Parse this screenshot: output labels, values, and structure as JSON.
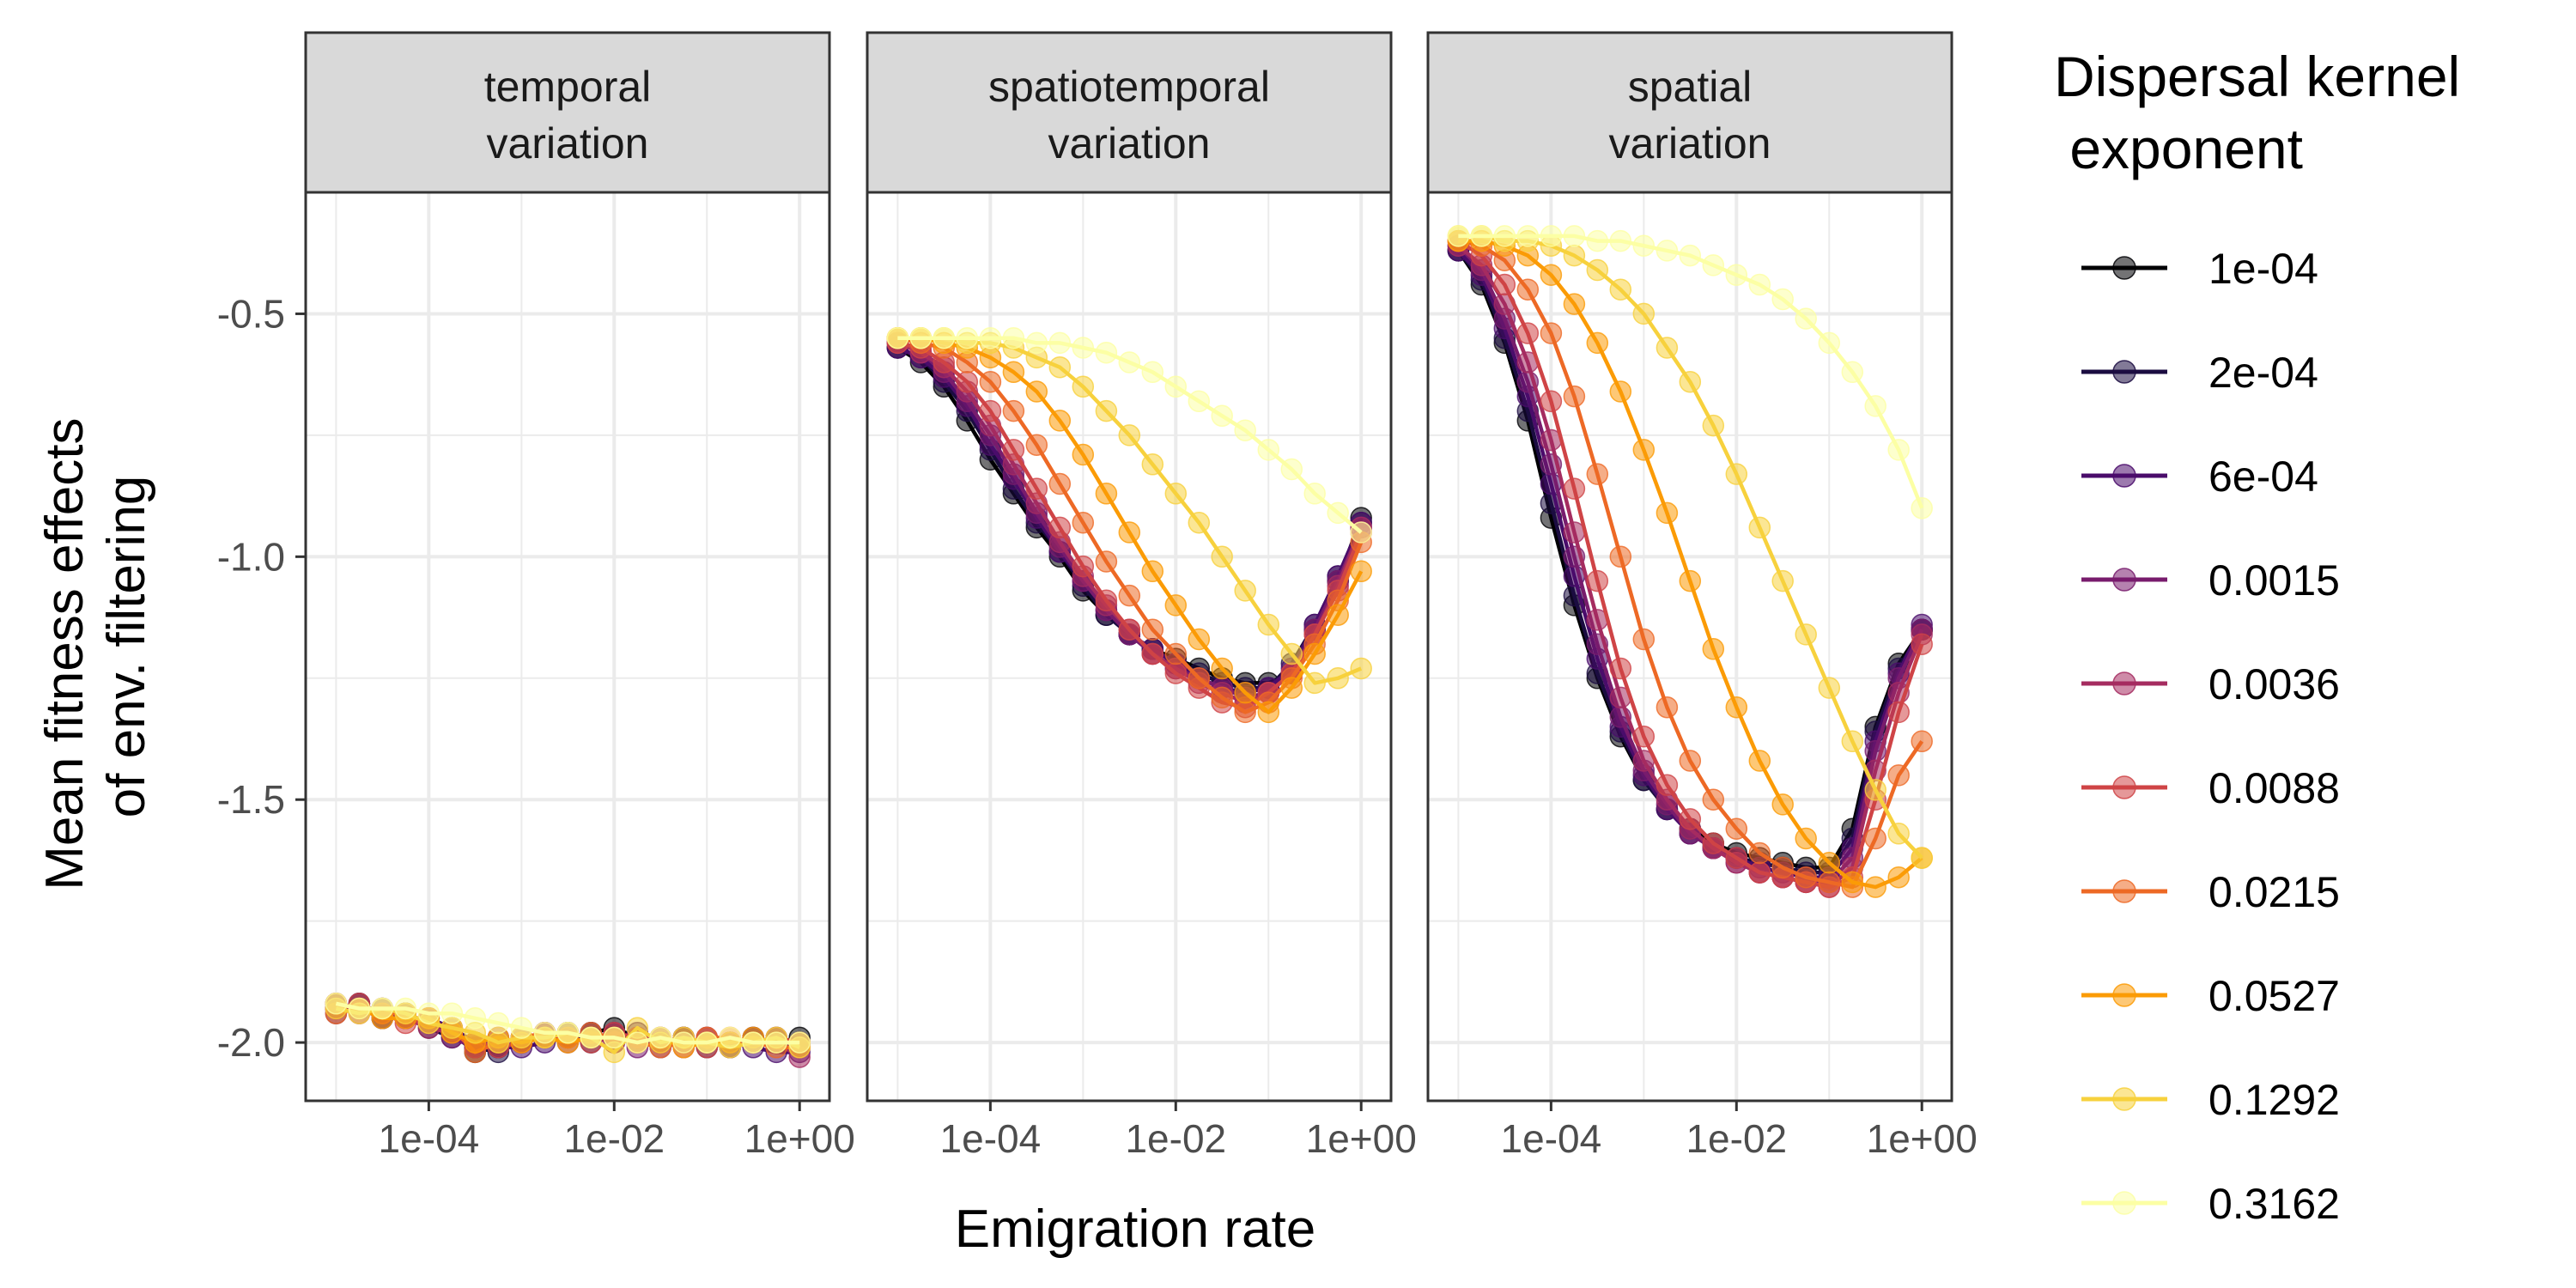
{
  "chart_data": {
    "type": "line",
    "xlabel": "Emigration rate",
    "ylabel_lines": [
      "Mean fitness effects",
      "of env. filtering"
    ],
    "x_scale": "log10",
    "x_ticks": [
      0.0001,
      0.01,
      1
    ],
    "x_tick_labels": [
      "1e-04",
      "1e-02",
      "1e+00"
    ],
    "y_ticks": [
      -0.5,
      -1.0,
      -1.5,
      -2.0
    ],
    "y_tick_labels": [
      "-0.5",
      "-1.0",
      "-1.5",
      "-2.0"
    ],
    "ylim": [
      -2.12,
      -0.25
    ],
    "xlim": [
      4.7e-06,
      2.1
    ],
    "grid": true,
    "legend": {
      "title_lines": [
        "Dispersal kernel",
        " exponent"
      ],
      "position": "right",
      "entries": [
        "1e-04",
        "2e-04",
        "6e-04",
        "0.0015",
        "0.0036",
        "0.0088",
        "0.0215",
        "0.0527",
        "0.1292",
        "0.3162"
      ],
      "colors": [
        "#000004",
        "#1b0c41",
        "#4a0c6b",
        "#781c6d",
        "#a52c60",
        "#cf4446",
        "#ed6925",
        "#fb9b06",
        "#f7d13d",
        "#fcffa4"
      ]
    },
    "x_points": [
      1e-05,
      1.78e-05,
      3.16e-05,
      5.62e-05,
      0.0001,
      0.000178,
      0.000316,
      0.000562,
      0.001,
      0.00178,
      0.00316,
      0.00562,
      0.01,
      0.0178,
      0.0316,
      0.0562,
      0.1,
      0.178,
      0.316,
      0.562,
      1
    ],
    "panels": [
      {
        "title_lines": [
          "temporal",
          "variation"
        ],
        "series": [
          {
            "values": [
              -1.93,
              -1.92,
              -1.95,
              -1.94,
              -1.96,
              -1.98,
              -2.02,
              -2.01,
              -2.0,
              -1.98,
              -1.99,
              -1.98,
              -1.97,
              -1.99,
              -2.0,
              -1.99,
              -2.0,
              -2.01,
              -1.99,
              -2.0,
              -1.99
            ]
          },
          {
            "values": [
              -1.92,
              -1.93,
              -1.93,
              -1.95,
              -1.97,
              -1.99,
              -2.01,
              -2.02,
              -1.99,
              -1.99,
              -1.98,
              -2.0,
              -1.98,
              -2.0,
              -2.0,
              -1.99,
              -2.01,
              -2.0,
              -2.0,
              -1.99,
              -2.0
            ]
          },
          {
            "values": [
              -1.94,
              -1.92,
              -1.94,
              -1.95,
              -1.95,
              -1.97,
              -2.0,
              -2.01,
              -2.01,
              -2.0,
              -1.99,
              -1.98,
              -2.0,
              -1.98,
              -2.01,
              -2.0,
              -1.99,
              -2.0,
              -2.01,
              -2.02,
              -2.02
            ]
          },
          {
            "values": [
              -1.93,
              -1.93,
              -1.95,
              -1.94,
              -1.96,
              -1.99,
              -2.01,
              -1.99,
              -2.0,
              -1.98,
              -2.0,
              -1.99,
              -1.98,
              -2.01,
              -1.99,
              -2.0,
              -2.0,
              -2.0,
              -1.99,
              -2.0,
              -2.01
            ]
          },
          {
            "values": [
              -1.92,
              -1.94,
              -1.93,
              -1.95,
              -1.97,
              -1.98,
              -2.01,
              -2.0,
              -1.99,
              -1.99,
              -1.98,
              -1.99,
              -2.0,
              -1.99,
              -2.0,
              -2.01,
              -1.99,
              -2.01,
              -2.0,
              -2.0,
              -2.03
            ]
          },
          {
            "values": [
              -1.93,
              -1.92,
              -1.94,
              -1.96,
              -1.95,
              -1.98,
              -2.0,
              -2.01,
              -2.0,
              -1.99,
              -1.99,
              -2.0,
              -1.98,
              -1.99,
              -2.0,
              -1.99,
              -2.01,
              -2.0,
              -2.0,
              -1.99,
              -2.0
            ]
          },
          {
            "values": [
              -1.94,
              -1.93,
              -1.94,
              -1.94,
              -1.96,
              -1.97,
              -2.02,
              -2.0,
              -1.99,
              -1.98,
              -1.99,
              -1.98,
              -1.99,
              -2.0,
              -2.01,
              -2.0,
              -1.99,
              -1.99,
              -2.0,
              -2.01,
              -2.01
            ]
          },
          {
            "values": [
              -1.92,
              -1.93,
              -1.95,
              -1.95,
              -1.95,
              -1.98,
              -2.0,
              -1.99,
              -2.0,
              -1.99,
              -2.0,
              -1.99,
              -1.99,
              -2.0,
              -1.99,
              -2.01,
              -2.0,
              -2.0,
              -1.99,
              -2.0,
              -2.0
            ]
          },
          {
            "values": [
              -1.93,
              -1.94,
              -1.93,
              -1.94,
              -1.96,
              -1.97,
              -1.98,
              -2.0,
              -1.99,
              -1.99,
              -1.98,
              -1.99,
              -2.02,
              -1.97,
              -2.0,
              -1.99,
              -2.0,
              -2.01,
              -2.0,
              -1.99,
              -2.01
            ]
          },
          {
            "values": [
              -1.92,
              -1.93,
              -1.93,
              -1.93,
              -1.94,
              -1.94,
              -1.95,
              -1.96,
              -1.97,
              -1.98,
              -1.98,
              -1.99,
              -1.99,
              -2.0,
              -1.99,
              -2.0,
              -2.0,
              -1.99,
              -2.0,
              -2.0,
              -2.0
            ]
          }
        ]
      },
      {
        "title_lines": [
          "spatiotemporal",
          "variation"
        ],
        "series": [
          {
            "values": [
              -0.57,
              -0.6,
              -0.65,
              -0.72,
              -0.8,
              -0.87,
              -0.94,
              -1.0,
              -1.07,
              -1.12,
              -1.16,
              -1.19,
              -1.21,
              -1.23,
              -1.25,
              -1.26,
              -1.26,
              -1.24,
              -1.15,
              -1.05,
              -0.92
            ]
          },
          {
            "values": [
              -0.57,
              -0.59,
              -0.64,
              -0.7,
              -0.78,
              -0.86,
              -0.93,
              -0.99,
              -1.06,
              -1.12,
              -1.16,
              -1.19,
              -1.22,
              -1.24,
              -1.26,
              -1.27,
              -1.27,
              -1.22,
              -1.14,
              -1.04,
              -0.93
            ]
          },
          {
            "values": [
              -0.57,
              -0.59,
              -0.63,
              -0.69,
              -0.77,
              -0.84,
              -0.92,
              -0.99,
              -1.05,
              -1.11,
              -1.16,
              -1.19,
              -1.22,
              -1.25,
              -1.27,
              -1.28,
              -1.27,
              -1.23,
              -1.14,
              -1.04,
              -0.93
            ]
          },
          {
            "values": [
              -0.56,
              -0.58,
              -0.62,
              -0.68,
              -0.75,
              -0.83,
              -0.91,
              -0.98,
              -1.05,
              -1.11,
              -1.16,
              -1.2,
              -1.23,
              -1.25,
              -1.27,
              -1.29,
              -1.28,
              -1.24,
              -1.15,
              -1.05,
              -0.94
            ]
          },
          {
            "values": [
              -0.56,
              -0.58,
              -0.61,
              -0.66,
              -0.73,
              -0.81,
              -0.89,
              -0.97,
              -1.04,
              -1.1,
              -1.15,
              -1.2,
              -1.23,
              -1.26,
              -1.28,
              -1.3,
              -1.28,
              -1.24,
              -1.16,
              -1.06,
              -0.94
            ]
          },
          {
            "values": [
              -0.56,
              -0.57,
              -0.6,
              -0.64,
              -0.7,
              -0.78,
              -0.86,
              -0.94,
              -1.02,
              -1.09,
              -1.15,
              -1.2,
              -1.24,
              -1.27,
              -1.3,
              -1.31,
              -1.28,
              -1.24,
              -1.16,
              -1.07,
              -0.95
            ]
          },
          {
            "values": [
              -0.55,
              -0.56,
              -0.57,
              -0.6,
              -0.64,
              -0.7,
              -0.77,
              -0.85,
              -0.93,
              -1.01,
              -1.08,
              -1.15,
              -1.2,
              -1.25,
              -1.29,
              -1.32,
              -1.3,
              -1.25,
              -1.18,
              -1.09,
              -0.97
            ]
          },
          {
            "values": [
              -0.55,
              -0.55,
              -0.56,
              -0.57,
              -0.59,
              -0.62,
              -0.66,
              -0.72,
              -0.79,
              -0.87,
              -0.95,
              -1.03,
              -1.1,
              -1.17,
              -1.23,
              -1.28,
              -1.32,
              -1.27,
              -1.2,
              -1.12,
              -1.03
            ]
          },
          {
            "values": [
              -0.55,
              -0.55,
              -0.55,
              -0.56,
              -0.56,
              -0.57,
              -0.59,
              -0.61,
              -0.65,
              -0.7,
              -0.75,
              -0.81,
              -0.87,
              -0.93,
              -1.0,
              -1.07,
              -1.14,
              -1.2,
              -1.26,
              -1.25,
              -1.23
            ]
          },
          {
            "values": [
              -0.55,
              -0.55,
              -0.55,
              -0.55,
              -0.55,
              -0.55,
              -0.56,
              -0.56,
              -0.57,
              -0.58,
              -0.6,
              -0.62,
              -0.65,
              -0.68,
              -0.71,
              -0.74,
              -0.78,
              -0.82,
              -0.87,
              -0.91,
              -0.95
            ]
          }
        ]
      },
      {
        "title_lines": [
          "spatial",
          "variation"
        ],
        "series": [
          {
            "values": [
              -0.37,
              -0.44,
              -0.56,
              -0.72,
              -0.92,
              -1.1,
              -1.25,
              -1.37,
              -1.46,
              -1.52,
              -1.56,
              -1.59,
              -1.61,
              -1.62,
              -1.63,
              -1.64,
              -1.64,
              -1.56,
              -1.35,
              -1.22,
              -1.15
            ]
          },
          {
            "values": [
              -0.37,
              -0.43,
              -0.55,
              -0.7,
              -0.89,
              -1.08,
              -1.24,
              -1.36,
              -1.46,
              -1.52,
              -1.57,
              -1.6,
              -1.62,
              -1.63,
              -1.64,
              -1.65,
              -1.65,
              -1.58,
              -1.36,
              -1.23,
              -1.15
            ]
          },
          {
            "values": [
              -0.37,
              -0.42,
              -0.53,
              -0.67,
              -0.85,
              -1.04,
              -1.21,
              -1.35,
              -1.45,
              -1.52,
              -1.57,
              -1.6,
              -1.62,
              -1.64,
              -1.65,
              -1.66,
              -1.66,
              -1.6,
              -1.38,
              -1.24,
              -1.14
            ]
          },
          {
            "values": [
              -0.36,
              -0.41,
              -0.51,
              -0.64,
              -0.81,
              -1.0,
              -1.18,
              -1.33,
              -1.44,
              -1.51,
              -1.57,
              -1.6,
              -1.63,
              -1.65,
              -1.66,
              -1.67,
              -1.67,
              -1.62,
              -1.4,
              -1.25,
              -1.15
            ]
          },
          {
            "values": [
              -0.36,
              -0.4,
              -0.48,
              -0.6,
              -0.76,
              -0.95,
              -1.13,
              -1.29,
              -1.42,
              -1.5,
              -1.56,
              -1.6,
              -1.63,
              -1.65,
              -1.66,
              -1.67,
              -1.68,
              -1.64,
              -1.44,
              -1.28,
              -1.16
            ]
          },
          {
            "values": [
              -0.35,
              -0.38,
              -0.44,
              -0.54,
              -0.68,
              -0.86,
              -1.05,
              -1.23,
              -1.37,
              -1.47,
              -1.54,
              -1.59,
              -1.62,
              -1.65,
              -1.66,
              -1.67,
              -1.68,
              -1.66,
              -1.5,
              -1.32,
              -1.18
            ]
          },
          {
            "values": [
              -0.35,
              -0.36,
              -0.39,
              -0.45,
              -0.54,
              -0.67,
              -0.83,
              -1.0,
              -1.17,
              -1.31,
              -1.42,
              -1.5,
              -1.56,
              -1.61,
              -1.64,
              -1.66,
              -1.67,
              -1.68,
              -1.58,
              -1.45,
              -1.38
            ]
          },
          {
            "values": [
              -0.35,
              -0.35,
              -0.36,
              -0.38,
              -0.42,
              -0.48,
              -0.56,
              -0.66,
              -0.78,
              -0.91,
              -1.05,
              -1.19,
              -1.31,
              -1.42,
              -1.51,
              -1.58,
              -1.63,
              -1.67,
              -1.68,
              -1.66,
              -1.62
            ]
          },
          {
            "values": [
              -0.34,
              -0.34,
              -0.35,
              -0.35,
              -0.36,
              -0.38,
              -0.41,
              -0.45,
              -0.5,
              -0.57,
              -0.64,
              -0.73,
              -0.83,
              -0.94,
              -1.05,
              -1.16,
              -1.27,
              -1.38,
              -1.48,
              -1.57,
              -1.62
            ]
          },
          {
            "values": [
              -0.34,
              -0.34,
              -0.34,
              -0.34,
              -0.34,
              -0.34,
              -0.35,
              -0.35,
              -0.36,
              -0.37,
              -0.38,
              -0.4,
              -0.42,
              -0.44,
              -0.47,
              -0.51,
              -0.56,
              -0.62,
              -0.69,
              -0.78,
              -0.9
            ]
          }
        ]
      }
    ]
  }
}
